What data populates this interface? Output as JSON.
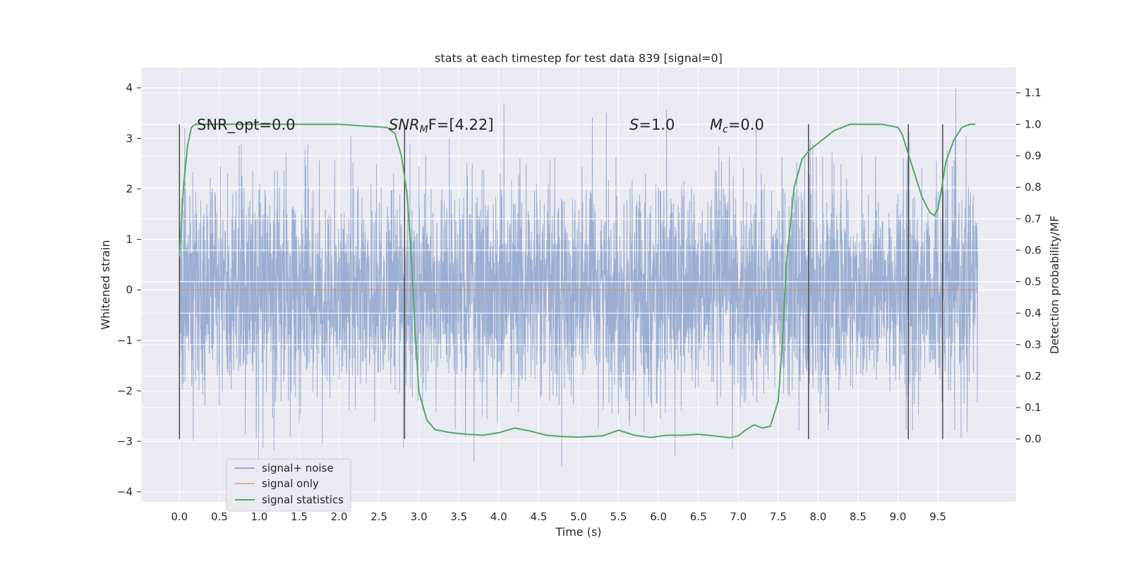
{
  "chart_data": {
    "type": "line",
    "title": "stats at each timestep for test data 839 [signal=0]",
    "xlabel": "Time (s)",
    "ylabel": "Whitened strain",
    "ylabel_right": "Detection probability/MF",
    "xlim": [
      -0.48,
      10.48
    ],
    "ylim": [
      -4.2,
      4.4
    ],
    "ylim_right": [
      -0.2,
      1.18
    ],
    "xticks": [
      "0.0",
      "0.5",
      "1.0",
      "1.5",
      "2.0",
      "2.5",
      "3.0",
      "3.5",
      "4.0",
      "4.5",
      "5.0",
      "5.5",
      "6.0",
      "6.5",
      "7.0",
      "7.5",
      "8.0",
      "8.5",
      "9.0",
      "9.5"
    ],
    "yticks": [
      "4",
      "3",
      "2",
      "1",
      "0",
      "−1",
      "−2",
      "−3",
      "−4"
    ],
    "yticks_right": [
      "1.1",
      "1.0",
      "0.9",
      "0.8",
      "0.7",
      "0.6",
      "0.5",
      "0.4",
      "0.3",
      "0.2",
      "0.1",
      "0.0"
    ],
    "grid": true,
    "legend_position": "lower-left",
    "colors": {
      "signal_noise": "#4c72b0",
      "signal_only": "#dd8452",
      "signal_statistics": "#55a868",
      "vlines": "#4a4a4a",
      "plot_bg": "#eaeaf2"
    },
    "series": [
      {
        "name": "signal+ noise",
        "description_values": "noise strain roughly between -3.8 and 4.0",
        "envelope_core": [
          -1.15,
          1.35
        ],
        "max": 4.0,
        "min": -3.8,
        "x_range": [
          0.0,
          10.0
        ]
      },
      {
        "name": "signal only",
        "x": [
          0.0,
          10.0
        ],
        "y": [
          0.0,
          0.0
        ]
      },
      {
        "name": "signal statistics",
        "x": [
          0.0,
          0.05,
          0.1,
          0.15,
          0.2,
          0.3,
          0.5,
          1.0,
          1.5,
          2.0,
          2.3,
          2.6,
          2.7,
          2.78,
          2.85,
          2.9,
          2.95,
          3.0,
          3.1,
          3.2,
          3.4,
          3.6,
          3.8,
          4.0,
          4.2,
          4.4,
          4.6,
          4.8,
          5.0,
          5.3,
          5.5,
          5.7,
          5.9,
          6.1,
          6.3,
          6.5,
          6.7,
          6.9,
          7.0,
          7.1,
          7.2,
          7.3,
          7.4,
          7.5,
          7.55,
          7.6,
          7.7,
          7.8,
          7.9,
          8.0,
          8.2,
          8.4,
          8.6,
          8.8,
          9.0,
          9.05,
          9.1,
          9.15,
          9.2,
          9.3,
          9.4,
          9.45,
          9.5,
          9.55,
          9.6,
          9.7,
          9.8,
          9.9,
          9.97
        ],
        "y": [
          0.58,
          0.8,
          0.93,
          0.99,
          1.0,
          1.0,
          1.0,
          1.0,
          1.0,
          1.0,
          0.995,
          0.99,
          0.97,
          0.9,
          0.78,
          0.6,
          0.35,
          0.15,
          0.06,
          0.03,
          0.02,
          0.015,
          0.012,
          0.02,
          0.035,
          0.025,
          0.012,
          0.008,
          0.006,
          0.01,
          0.028,
          0.012,
          0.005,
          0.012,
          0.012,
          0.015,
          0.01,
          0.004,
          0.01,
          0.03,
          0.045,
          0.035,
          0.04,
          0.12,
          0.3,
          0.55,
          0.8,
          0.89,
          0.92,
          0.94,
          0.98,
          1.0,
          1.0,
          1.0,
          0.99,
          0.97,
          0.93,
          0.89,
          0.85,
          0.77,
          0.72,
          0.71,
          0.73,
          0.8,
          0.88,
          0.95,
          0.99,
          1.0,
          1.0
        ]
      }
    ],
    "vlines": [
      0.0,
      2.82,
      7.88,
      9.13,
      9.56
    ],
    "annotations": {
      "snr_opt": "SNR_opt=0.0",
      "snr_mf_prefix": "SNR",
      "snr_mf_sub": "M",
      "snr_mf_suffix": "F=[4.22]",
      "s_prefix": "S",
      "s_suffix": "=1.0",
      "mc_prefix": "M",
      "mc_sub": "c",
      "mc_suffix": "=0.0"
    },
    "legend": {
      "signal_noise_label": "signal+ noise",
      "signal_only_label": "signal only",
      "signal_statistics_label": "signal statistics"
    }
  }
}
